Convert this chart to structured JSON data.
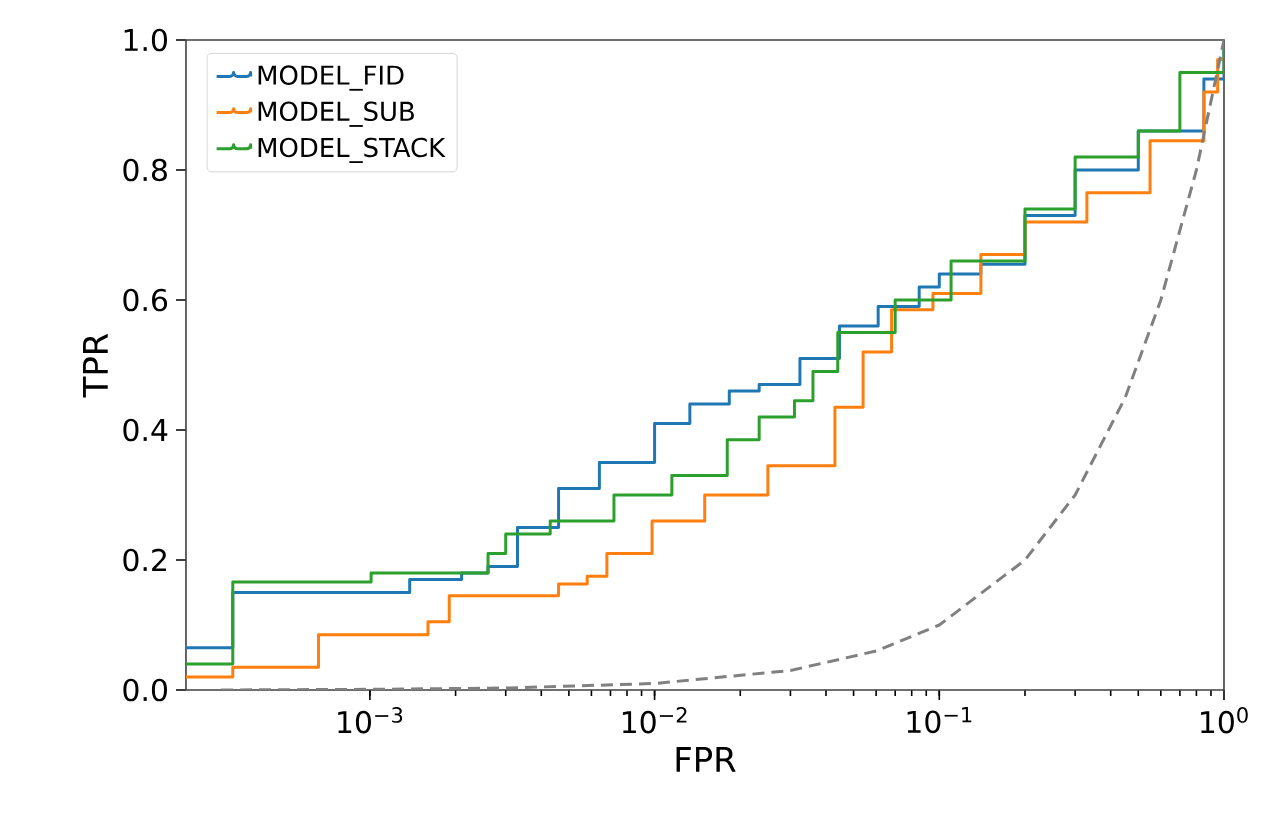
{
  "chart_data": {
    "type": "step",
    "xlabel": "FPR",
    "ylabel": "TPR",
    "log": "x",
    "xlim": [
      0.000226,
      1
    ],
    "ylim": [
      0,
      1
    ],
    "xticks": [
      {
        "value": 0.001,
        "label": "10$^{−3}$"
      },
      {
        "value": 0.01,
        "label": "10$^{−2}$"
      },
      {
        "value": 0.1,
        "label": "10$^{−1}$"
      },
      {
        "value": 1,
        "label": "10$^{0}$"
      }
    ],
    "yticks": [
      {
        "value": 0,
        "label": "0.0"
      },
      {
        "value": 0.2,
        "label": "0.2"
      },
      {
        "value": 0.4,
        "label": "0.4"
      },
      {
        "value": 0.6,
        "label": "0.6"
      },
      {
        "value": 0.8,
        "label": "0.8"
      },
      {
        "value": 1,
        "label": "1.0"
      }
    ],
    "grid": false,
    "legend": "top left",
    "marker": "none",
    "series": [
      {
        "name": "MODEL_FID",
        "color": "#1f77b4",
        "x": [
          0.000226,
          0.00033,
          0.00138,
          0.0021,
          0.0026,
          0.0033,
          0.0046,
          0.0064,
          0.01,
          0.0133,
          0.0183,
          0.0233,
          0.0324,
          0.0446,
          0.061,
          0.085,
          0.1,
          0.14,
          0.2,
          0.3,
          0.5,
          0.85,
          1
        ],
        "values": [
          0.065,
          0.15,
          0.17,
          0.18,
          0.19,
          0.25,
          0.31,
          0.35,
          0.41,
          0.44,
          0.46,
          0.47,
          0.51,
          0.56,
          0.59,
          0.62,
          0.64,
          0.655,
          0.73,
          0.8,
          0.86,
          0.94,
          1.0
        ]
      },
      {
        "name": "MODEL_SUB",
        "color": "#ff7f0e",
        "x": [
          0.000226,
          0.00033,
          0.00066,
          0.0016,
          0.0019,
          0.0046,
          0.0058,
          0.0068,
          0.0098,
          0.015,
          0.025,
          0.043,
          0.054,
          0.068,
          0.095,
          0.14,
          0.2,
          0.33,
          0.55,
          0.85,
          0.95,
          1
        ],
        "values": [
          0.02,
          0.035,
          0.085,
          0.105,
          0.145,
          0.163,
          0.175,
          0.21,
          0.26,
          0.3,
          0.345,
          0.435,
          0.52,
          0.585,
          0.61,
          0.67,
          0.72,
          0.765,
          0.845,
          0.92,
          0.97,
          0.97
        ]
      },
      {
        "name": "MODEL_STACK",
        "color": "#2ca02c",
        "x": [
          0.000226,
          0.00033,
          0.00101,
          0.0026,
          0.003,
          0.0043,
          0.0072,
          0.0115,
          0.018,
          0.0233,
          0.031,
          0.036,
          0.044,
          0.07,
          0.11,
          0.2,
          0.3,
          0.5,
          0.7,
          1
        ],
        "values": [
          0.04,
          0.166,
          0.18,
          0.21,
          0.24,
          0.26,
          0.3,
          0.33,
          0.385,
          0.42,
          0.445,
          0.49,
          0.55,
          0.6,
          0.66,
          0.74,
          0.82,
          0.86,
          0.95,
          1.0
        ]
      },
      {
        "type": "line",
        "line_style": "dashed",
        "color": "#808080",
        "x": [
          0.0003,
          0.001,
          0.003,
          0.01,
          0.03,
          0.06,
          0.1,
          0.2,
          0.3,
          0.45,
          0.6,
          0.8,
          1
        ],
        "values": [
          0,
          0.001,
          0.003,
          0.01,
          0.03,
          0.06,
          0.1,
          0.2,
          0.3,
          0.45,
          0.6,
          0.8,
          1
        ]
      }
    ]
  }
}
